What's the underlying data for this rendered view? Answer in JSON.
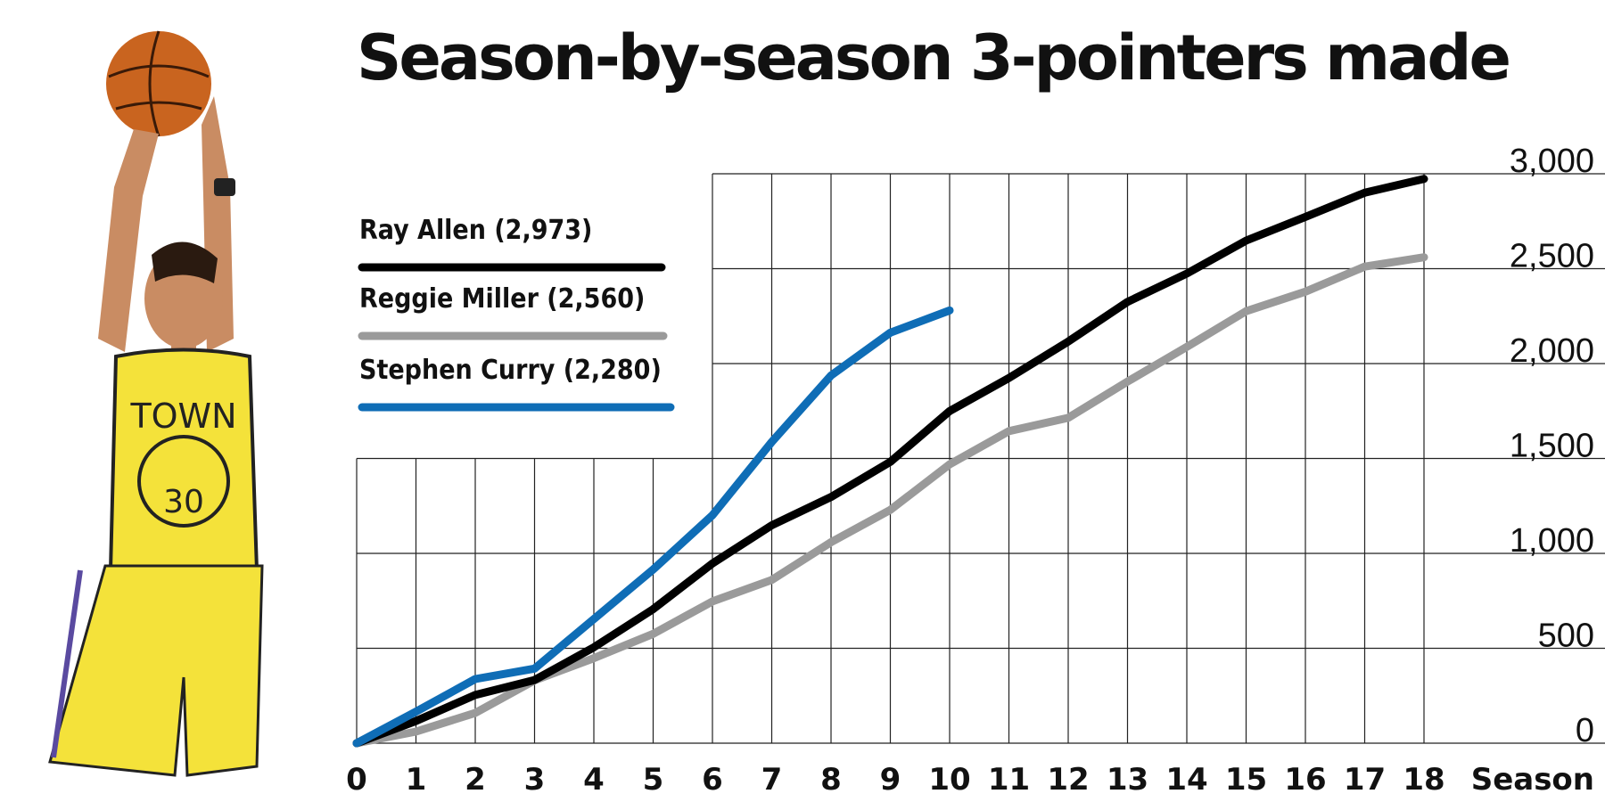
{
  "colors": {
    "ray_allen": "#000000",
    "reggie_miller": "#9a9a9a",
    "stephen_curry": "#0f6db6",
    "grid": "#222222"
  },
  "chart_data": {
    "type": "line",
    "title": "Season-by-season 3-pointers made",
    "xlabel": "Season",
    "ylabel": "",
    "xlim": [
      0,
      18
    ],
    "ylim": [
      0,
      3000
    ],
    "x_ticks": [
      "0",
      "1",
      "2",
      "3",
      "4",
      "5",
      "6",
      "7",
      "8",
      "9",
      "10",
      "11",
      "12",
      "13",
      "14",
      "15",
      "16",
      "17",
      "18"
    ],
    "y_ticks": [
      "0",
      "500",
      "1,000",
      "1,500",
      "2,000",
      "2,500",
      "3,000"
    ],
    "grid": true,
    "legend_position": "upper-left",
    "series": [
      {
        "name": "Ray Allen (2,973)",
        "color": "#000000",
        "x": [
          0,
          1,
          2,
          3,
          4,
          5,
          6,
          7,
          8,
          9,
          10,
          11,
          12,
          13,
          14,
          15,
          16,
          17,
          18
        ],
        "y": [
          0,
          117,
          254,
          333,
          505,
          706,
          947,
          1148,
          1297,
          1482,
          1750,
          1924,
          2116,
          2325,
          2474,
          2648,
          2773,
          2900,
          2973
        ]
      },
      {
        "name": "Reggie Miller (2,560)",
        "color": "#9a9a9a",
        "x": [
          0,
          1,
          2,
          3,
          4,
          5,
          6,
          7,
          8,
          9,
          10,
          11,
          12,
          13,
          14,
          15,
          16,
          17,
          18
        ],
        "y": [
          0,
          61,
          159,
          331,
          448,
          576,
          747,
          860,
          1059,
          1229,
          1469,
          1644,
          1714,
          1905,
          2088,
          2276,
          2379,
          2511,
          2560
        ]
      },
      {
        "name": "Stephen Curry (2,280)",
        "color": "#0f6db6",
        "x": [
          0,
          1,
          2,
          3,
          4,
          5,
          6,
          7,
          8,
          9,
          10
        ],
        "y": [
          0,
          166,
          338,
          393,
          654,
          915,
          1201,
          1587,
          1937,
          2163,
          2280
        ]
      }
    ]
  }
}
